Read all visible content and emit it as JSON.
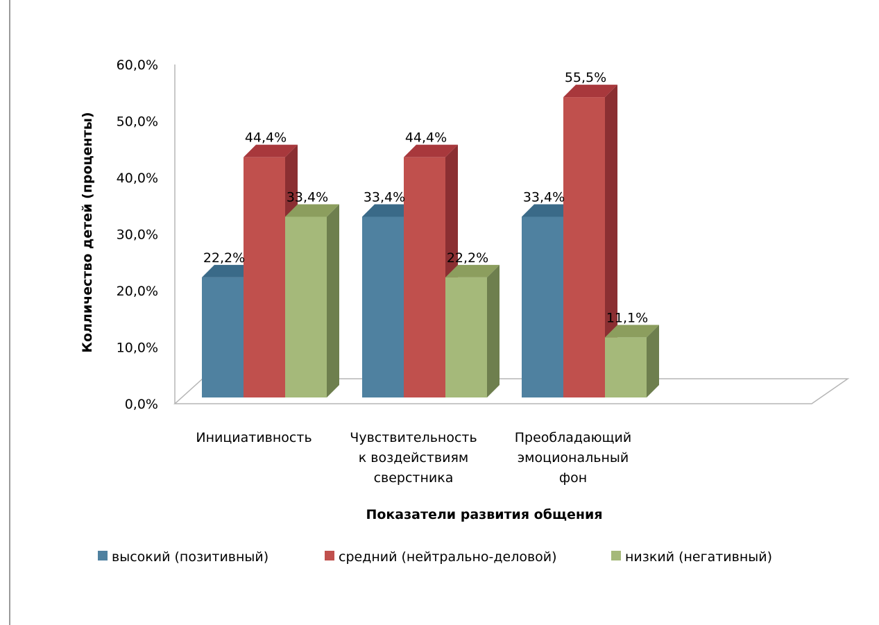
{
  "chart_data": {
    "type": "bar",
    "title": "",
    "xlabel": "Показатели развития общения",
    "ylabel": "Колличество детей (проценты)",
    "ylim": [
      0,
      60
    ],
    "y_ticks": [
      "0,0%",
      "10,0%",
      "20,0%",
      "30,0%",
      "40,0%",
      "50,0%",
      "60,0%"
    ],
    "categories": [
      [
        "Инициативность"
      ],
      [
        "Чувствительность",
        "к воздействиям",
        "сверстника"
      ],
      [
        "Преобладающий",
        "эмоциональный",
        "фон"
      ]
    ],
    "series": [
      {
        "name": "высокий (позитивный)",
        "values": [
          22.2,
          33.4,
          33.4
        ],
        "labels": [
          "22,2%",
          "33,4%",
          "33,4%"
        ]
      },
      {
        "name": "средний (нейтрально-деловой)",
        "values": [
          44.4,
          44.4,
          55.5
        ],
        "labels": [
          "44,4%",
          "44,4%",
          "55,5%"
        ]
      },
      {
        "name": "низкий (негативный)",
        "values": [
          33.4,
          22.2,
          11.1
        ],
        "labels": [
          "33,4%",
          "22,2%",
          "11,1%"
        ]
      }
    ],
    "colors": {
      "series": [
        "#4F81A0",
        "#C0504D",
        "#A5B97A"
      ],
      "series_side": [
        "#3D6680",
        "#8B2F32",
        "#6E7F4E"
      ],
      "series_top": [
        "#3A6A88",
        "#A8383C",
        "#8C9E5E"
      ],
      "floor": "#b5b5b5",
      "text": "#000000"
    },
    "grid": false,
    "legend_position": "bottom"
  }
}
